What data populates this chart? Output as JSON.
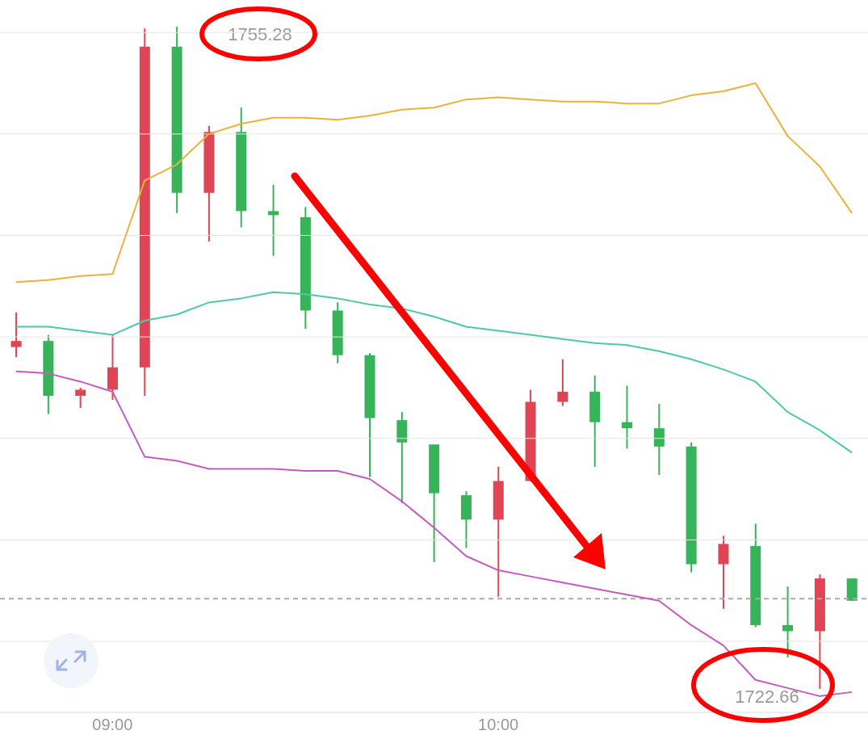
{
  "chart_data": {
    "type": "candlestick",
    "categories": [
      null,
      null,
      null,
      "09:00",
      null,
      null,
      null,
      null,
      null,
      null,
      null,
      null,
      null,
      null,
      null,
      "10:00",
      null,
      null,
      null,
      null,
      null,
      null,
      null,
      null,
      null,
      null,
      null
    ],
    "ohlc": [
      [
        1739.5,
        1741.2,
        1739.0,
        1739.8
      ],
      [
        1739.8,
        1740.1,
        1736.2,
        1737.1
      ],
      [
        1737.1,
        1737.5,
        1736.5,
        1737.4
      ],
      [
        1737.4,
        1740.1,
        1736.9,
        1738.5
      ],
      [
        1738.5,
        1755.2,
        1737.1,
        1754.3
      ],
      [
        1754.3,
        1755.28,
        1746.1,
        1747.1
      ],
      [
        1747.1,
        1750.4,
        1744.7,
        1750.1
      ],
      [
        1750.1,
        1751.3,
        1745.4,
        1746.2
      ],
      [
        1746.2,
        1747.5,
        1744.0,
        1746.0
      ],
      [
        1745.9,
        1746.4,
        1740.4,
        1741.3
      ],
      [
        1741.3,
        1741.7,
        1738.7,
        1739.1
      ],
      [
        1739.1,
        1739.2,
        1733.1,
        1736.0
      ],
      [
        1735.9,
        1736.3,
        1731.8,
        1734.8
      ],
      [
        1734.7,
        1734.7,
        1728.9,
        1732.3
      ],
      [
        1732.2,
        1732.4,
        1729.6,
        1731.0
      ],
      [
        1731.0,
        1733.6,
        1727.2,
        1732.9
      ],
      [
        1732.9,
        1737.4,
        1732.9,
        1736.8
      ],
      [
        1736.8,
        1738.9,
        1736.6,
        1737.3
      ],
      [
        1737.3,
        1738.1,
        1733.6,
        1735.8
      ],
      [
        1735.8,
        1737.6,
        1734.5,
        1735.5
      ],
      [
        1735.5,
        1736.7,
        1733.2,
        1734.6
      ],
      [
        1734.6,
        1734.8,
        1728.4,
        1728.8
      ],
      [
        1728.8,
        1730.2,
        1726.6,
        1729.8
      ],
      [
        1729.7,
        1730.8,
        1725.7,
        1725.8
      ],
      [
        1725.8,
        1727.7,
        1724.2,
        1725.5
      ],
      [
        1725.5,
        1728.3,
        1722.66,
        1728.1
      ],
      [
        1728.1,
        1728.1,
        1727.0,
        1727.0
      ]
    ],
    "colors": [
      "#e04556",
      "#37b35a",
      "#e04556",
      "#e04556",
      "#e04556",
      "#37b35a",
      "#e04556",
      "#37b35a",
      "#37b35a",
      "#37b35a",
      "#37b35a",
      "#37b35a",
      "#37b35a",
      "#37b35a",
      "#37b35a",
      "#e04556",
      "#e04556",
      "#e04556",
      "#37b35a",
      "#37b35a",
      "#37b35a",
      "#37b35a",
      "#e04556",
      "#37b35a",
      "#37b35a",
      "#e04556",
      "#37b35a"
    ],
    "series": [
      {
        "type": "line",
        "color": "#e9b33b",
        "values": [
          1742.7,
          1742.8,
          1743.0,
          1743.1,
          1747.7,
          1748.5,
          1750.0,
          1750.5,
          1750.8,
          1750.8,
          1750.7,
          1750.9,
          1751.2,
          1751.3,
          1751.7,
          1751.8,
          1751.7,
          1751.6,
          1751.6,
          1751.5,
          1751.5,
          1751.9,
          1752.1,
          1752.5,
          1749.9,
          1748.4,
          1746.1
        ]
      },
      {
        "type": "line",
        "color": "#4fc8a8",
        "values": [
          1740.5,
          1740.5,
          1740.3,
          1740.1,
          1740.8,
          1741.1,
          1741.7,
          1741.9,
          1742.2,
          1742.1,
          1741.9,
          1741.6,
          1741.4,
          1741.0,
          1740.5,
          1740.3,
          1740.1,
          1739.9,
          1739.7,
          1739.6,
          1739.3,
          1738.9,
          1738.4,
          1737.8,
          1736.3,
          1735.4,
          1734.3
        ]
      },
      {
        "type": "line",
        "color": "#c65bbf",
        "values": [
          1738.3,
          1738.2,
          1737.8,
          1737.3,
          1734.1,
          1733.9,
          1733.5,
          1733.5,
          1733.5,
          1733.4,
          1733.4,
          1733.0,
          1731.9,
          1730.6,
          1729.2,
          1728.5,
          1728.2,
          1727.9,
          1727.6,
          1727.3,
          1727.0,
          1725.8,
          1724.8,
          1723.1,
          1722.7,
          1722.3,
          1722.5
        ]
      }
    ],
    "ylim": [
      1721.5,
      1756.6
    ],
    "yticks": [
      {
        "value": 1725,
        "label": null
      },
      {
        "value": 1730,
        "label": null
      },
      {
        "value": 1735,
        "label": null
      },
      {
        "value": 1740,
        "label": null
      },
      {
        "value": 1745,
        "label": null
      },
      {
        "value": 1750,
        "label": null
      },
      {
        "value": 1755,
        "label": null
      }
    ],
    "grid": "y",
    "tick_labels": "x",
    "ref_lines": [
      {
        "axis": "y",
        "value": 1727.1,
        "color": "#aaaaaa",
        "line_style": "dashed"
      }
    ],
    "annotations": [
      "1755.28",
      "1722.66"
    ]
  }
}
